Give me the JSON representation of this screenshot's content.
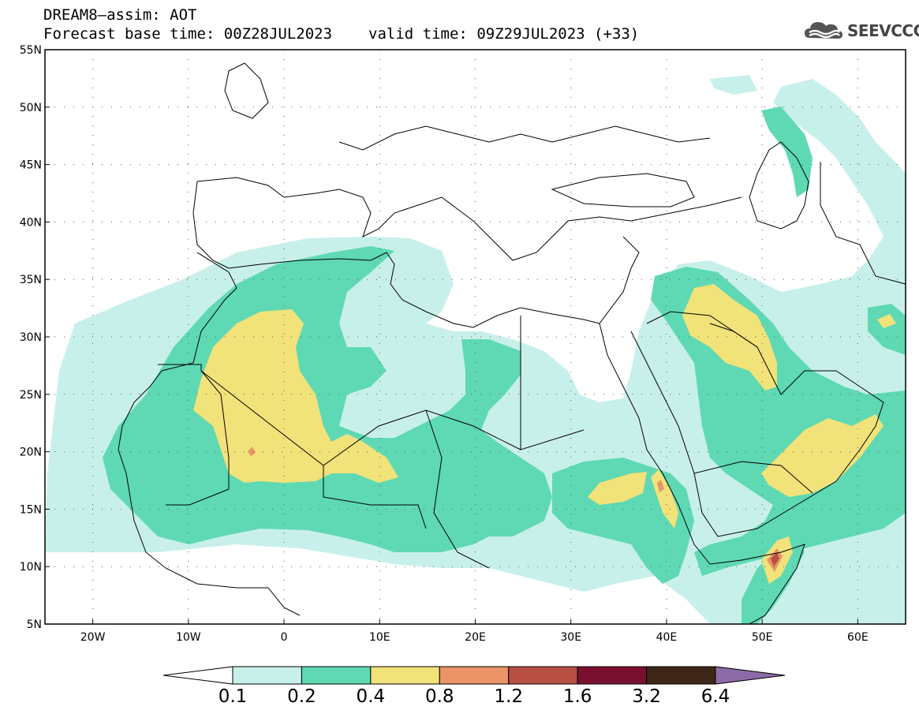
{
  "title": {
    "line1": "DREAM8–assim: AOT",
    "base_time": "Forecast base time: 00Z28JUL2023",
    "valid_time": "valid time: 09Z29JUL2023 (+33)"
  },
  "logo": {
    "icon": "cloud-logo-icon",
    "text": "SEEVCCC"
  },
  "colors": {
    "below": "#ffffff",
    "levels": [
      "#c8f0ea",
      "#5ed9b3",
      "#f2e27a",
      "#eb9468",
      "#b84f43",
      "#7a1030",
      "#3d2616"
    ],
    "above": "#8c6ba6",
    "land_border": "#000000"
  },
  "axes": {
    "lat_labels": [
      "55N",
      "50N",
      "45N",
      "40N",
      "35N",
      "30N",
      "25N",
      "20N",
      "15N",
      "10N",
      "5N"
    ],
    "lon_labels": [
      "20W",
      "10W",
      "0",
      "10E",
      "20E",
      "30E",
      "40E",
      "50E",
      "60E"
    ],
    "lat_range": [
      5,
      55
    ],
    "lon_range": [
      -25,
      65
    ],
    "grid": "dotted"
  },
  "colorbar": {
    "labels": [
      "0.1",
      "0.2",
      "0.4",
      "0.8",
      "1.2",
      "1.6",
      "3.2",
      "6.4"
    ],
    "extend": "both"
  }
}
